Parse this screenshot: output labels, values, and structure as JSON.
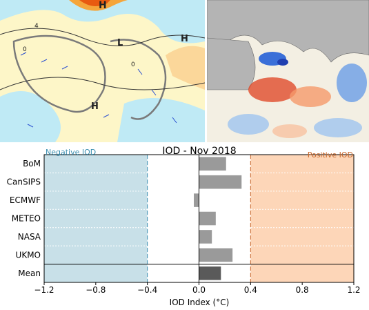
{
  "left_map": {
    "panel": "pressure-wind-map",
    "labels": [
      "H",
      "L",
      "H",
      "H"
    ],
    "contour_labels": [
      "4",
      "0",
      "0"
    ]
  },
  "right_map": {
    "panel": "sea-surface-temperature-anomaly-map"
  },
  "chart_data": {
    "type": "bar",
    "orientation": "horizontal",
    "title": "IOD - Nov 2018",
    "xlabel": "IOD Index (°C)",
    "ylabel": "",
    "xlim": [
      -1.2,
      1.2
    ],
    "xticks": [
      -1.2,
      -0.8,
      -0.4,
      0.0,
      0.4,
      0.8,
      1.2
    ],
    "xtick_labels": [
      "−1.2",
      "−0.8",
      "−0.4",
      "0.0",
      "0.4",
      "0.8",
      "1.2"
    ],
    "categories": [
      "BoM",
      "CanSIPS",
      "ECMWF",
      "METEO",
      "NASA",
      "UKMO",
      "Mean"
    ],
    "values": [
      0.21,
      0.33,
      -0.04,
      0.13,
      0.1,
      0.26,
      0.17
    ],
    "thresholds": [
      -0.4,
      0.4
    ],
    "regions": [
      {
        "name": "Negative IOD",
        "from": -1.2,
        "to": -0.4,
        "color": "#c8e0e8",
        "label_color": "#3b8fb0"
      },
      {
        "name": "Positive IOD",
        "from": 0.4,
        "to": 1.2,
        "color": "#fdd6b8",
        "label_color": "#c8662a"
      }
    ],
    "bar_color": "#9a9a9a",
    "mean_bar_color": "#5a5a5a",
    "grid": true
  }
}
